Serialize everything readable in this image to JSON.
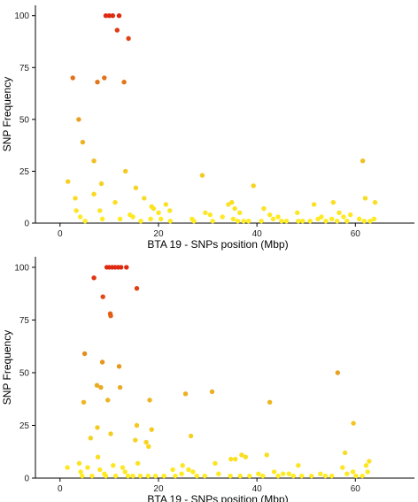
{
  "chart_data": [
    {
      "type": "scatter",
      "xlabel": "BTA 19 - SNPs position (Mbp)",
      "ylabel": "SNP Frequency",
      "xlim": [
        -5,
        72
      ],
      "ylim": [
        0,
        105
      ],
      "xticks": [
        0,
        20,
        40,
        60
      ],
      "yticks": [
        0,
        25,
        50,
        75,
        100
      ],
      "color_scale": "frequency: yellow (low) to red (high)",
      "colors": [
        "#ffee22",
        "#e8a020",
        "#dd2a10"
      ],
      "points": [
        {
          "x": 9.3,
          "y": 100
        },
        {
          "x": 10.0,
          "y": 100
        },
        {
          "x": 10.7,
          "y": 100
        },
        {
          "x": 12.0,
          "y": 100
        },
        {
          "x": 11.6,
          "y": 93
        },
        {
          "x": 13.9,
          "y": 89
        },
        {
          "x": 2.6,
          "y": 70
        },
        {
          "x": 9.0,
          "y": 70
        },
        {
          "x": 7.6,
          "y": 68
        },
        {
          "x": 13.0,
          "y": 68
        },
        {
          "x": 3.8,
          "y": 50
        },
        {
          "x": 4.6,
          "y": 39
        },
        {
          "x": 6.9,
          "y": 30
        },
        {
          "x": 61.5,
          "y": 30
        },
        {
          "x": 13.3,
          "y": 25
        },
        {
          "x": 28.9,
          "y": 23
        },
        {
          "x": 1.6,
          "y": 20
        },
        {
          "x": 8.4,
          "y": 19
        },
        {
          "x": 39.3,
          "y": 18
        },
        {
          "x": 15.4,
          "y": 17
        },
        {
          "x": 6.9,
          "y": 14
        },
        {
          "x": 17.1,
          "y": 12
        },
        {
          "x": 3.1,
          "y": 12
        },
        {
          "x": 62.0,
          "y": 12
        },
        {
          "x": 11.2,
          "y": 10
        },
        {
          "x": 64.0,
          "y": 10
        },
        {
          "x": 55.5,
          "y": 10
        },
        {
          "x": 34.9,
          "y": 10
        },
        {
          "x": 21.5,
          "y": 9
        },
        {
          "x": 34.2,
          "y": 9
        },
        {
          "x": 51.6,
          "y": 9
        },
        {
          "x": 18.6,
          "y": 8
        },
        {
          "x": 19.0,
          "y": 7
        },
        {
          "x": 35.5,
          "y": 7
        },
        {
          "x": 41.4,
          "y": 7
        },
        {
          "x": 3.3,
          "y": 6
        },
        {
          "x": 8.1,
          "y": 6
        },
        {
          "x": 22.3,
          "y": 6
        },
        {
          "x": 20.0,
          "y": 5
        },
        {
          "x": 29.5,
          "y": 5
        },
        {
          "x": 36.5,
          "y": 5
        },
        {
          "x": 48.2,
          "y": 5
        },
        {
          "x": 56.7,
          "y": 5
        },
        {
          "x": 4.1,
          "y": 3
        },
        {
          "x": 14.2,
          "y": 4
        },
        {
          "x": 30.5,
          "y": 4
        },
        {
          "x": 42.6,
          "y": 4
        },
        {
          "x": 59.0,
          "y": 4
        },
        {
          "x": 14.8,
          "y": 3
        },
        {
          "x": 33.0,
          "y": 3
        },
        {
          "x": 44.3,
          "y": 3
        },
        {
          "x": 53.1,
          "y": 3
        },
        {
          "x": 57.6,
          "y": 3
        },
        {
          "x": 5.1,
          "y": 1
        },
        {
          "x": 8.6,
          "y": 2
        },
        {
          "x": 12.2,
          "y": 2
        },
        {
          "x": 16.4,
          "y": 1
        },
        {
          "x": 18.4,
          "y": 2
        },
        {
          "x": 20.5,
          "y": 2
        },
        {
          "x": 22.4,
          "y": 1
        },
        {
          "x": 26.8,
          "y": 2
        },
        {
          "x": 27.2,
          "y": 1
        },
        {
          "x": 31.0,
          "y": 1
        },
        {
          "x": 35.2,
          "y": 2
        },
        {
          "x": 36.1,
          "y": 1
        },
        {
          "x": 37.3,
          "y": 1
        },
        {
          "x": 38.3,
          "y": 1
        },
        {
          "x": 40.9,
          "y": 1
        },
        {
          "x": 43.3,
          "y": 2
        },
        {
          "x": 45.0,
          "y": 1
        },
        {
          "x": 46.0,
          "y": 1
        },
        {
          "x": 48.4,
          "y": 1
        },
        {
          "x": 49.3,
          "y": 1
        },
        {
          "x": 50.8,
          "y": 1
        },
        {
          "x": 52.4,
          "y": 2
        },
        {
          "x": 54.0,
          "y": 1
        },
        {
          "x": 55.2,
          "y": 2
        },
        {
          "x": 56.3,
          "y": 1
        },
        {
          "x": 58.3,
          "y": 1
        },
        {
          "x": 60.8,
          "y": 2
        },
        {
          "x": 61.8,
          "y": 1
        },
        {
          "x": 63.0,
          "y": 1
        },
        {
          "x": 63.8,
          "y": 2
        }
      ]
    },
    {
      "type": "scatter",
      "xlabel": "BTA 19 - SNPs position (Mbp)",
      "ylabel": "SNP Frequency",
      "xlim": [
        -5,
        72
      ],
      "ylim": [
        0,
        105
      ],
      "xticks": [
        0,
        20,
        40,
        60
      ],
      "yticks": [
        0,
        25,
        50,
        75,
        100
      ],
      "color_scale": "frequency: yellow (low) to red (high)",
      "colors": [
        "#ffee22",
        "#e8a020",
        "#dd2a10"
      ],
      "points": [
        {
          "x": 9.5,
          "y": 100
        },
        {
          "x": 10.0,
          "y": 100
        },
        {
          "x": 10.6,
          "y": 100
        },
        {
          "x": 11.2,
          "y": 100
        },
        {
          "x": 11.8,
          "y": 100
        },
        {
          "x": 12.4,
          "y": 100
        },
        {
          "x": 13.5,
          "y": 100
        },
        {
          "x": 6.9,
          "y": 95
        },
        {
          "x": 15.6,
          "y": 90
        },
        {
          "x": 8.7,
          "y": 86
        },
        {
          "x": 10.2,
          "y": 78
        },
        {
          "x": 10.3,
          "y": 77
        },
        {
          "x": 5.0,
          "y": 59
        },
        {
          "x": 8.6,
          "y": 55
        },
        {
          "x": 12.0,
          "y": 53
        },
        {
          "x": 56.4,
          "y": 50
        },
        {
          "x": 7.5,
          "y": 44
        },
        {
          "x": 8.3,
          "y": 43
        },
        {
          "x": 12.2,
          "y": 43
        },
        {
          "x": 30.9,
          "y": 41
        },
        {
          "x": 25.5,
          "y": 40
        },
        {
          "x": 18.2,
          "y": 37
        },
        {
          "x": 4.8,
          "y": 36
        },
        {
          "x": 9.7,
          "y": 37
        },
        {
          "x": 42.6,
          "y": 36
        },
        {
          "x": 59.6,
          "y": 26
        },
        {
          "x": 15.6,
          "y": 25
        },
        {
          "x": 7.6,
          "y": 24
        },
        {
          "x": 18.6,
          "y": 23
        },
        {
          "x": 10.3,
          "y": 21
        },
        {
          "x": 26.6,
          "y": 20
        },
        {
          "x": 6.2,
          "y": 19
        },
        {
          "x": 15.3,
          "y": 18
        },
        {
          "x": 17.5,
          "y": 17
        },
        {
          "x": 18.0,
          "y": 15
        },
        {
          "x": 57.9,
          "y": 12
        },
        {
          "x": 42.0,
          "y": 11
        },
        {
          "x": 36.9,
          "y": 11
        },
        {
          "x": 37.7,
          "y": 10
        },
        {
          "x": 7.7,
          "y": 10
        },
        {
          "x": 34.7,
          "y": 9
        },
        {
          "x": 35.6,
          "y": 9
        },
        {
          "x": 62.8,
          "y": 8
        },
        {
          "x": 3.9,
          "y": 7
        },
        {
          "x": 15.8,
          "y": 7
        },
        {
          "x": 31.5,
          "y": 7
        },
        {
          "x": 62.2,
          "y": 6
        },
        {
          "x": 1.5,
          "y": 5
        },
        {
          "x": 10.8,
          "y": 6
        },
        {
          "x": 24.9,
          "y": 6
        },
        {
          "x": 48.4,
          "y": 6
        },
        {
          "x": 5.6,
          "y": 5
        },
        {
          "x": 12.7,
          "y": 5
        },
        {
          "x": 22.9,
          "y": 4
        },
        {
          "x": 26.1,
          "y": 4
        },
        {
          "x": 8.1,
          "y": 4
        },
        {
          "x": 57.4,
          "y": 5
        },
        {
          "x": 4.2,
          "y": 3
        },
        {
          "x": 13.2,
          "y": 3
        },
        {
          "x": 27.0,
          "y": 3
        },
        {
          "x": 46.5,
          "y": 2
        },
        {
          "x": 43.5,
          "y": 3
        },
        {
          "x": 59.5,
          "y": 3
        },
        {
          "x": 4.5,
          "y": 1
        },
        {
          "x": 6.5,
          "y": 1
        },
        {
          "x": 9.0,
          "y": 2
        },
        {
          "x": 9.3,
          "y": 1
        },
        {
          "x": 11.3,
          "y": 1
        },
        {
          "x": 13.8,
          "y": 1
        },
        {
          "x": 14.8,
          "y": 1
        },
        {
          "x": 16.3,
          "y": 1
        },
        {
          "x": 17.9,
          "y": 1
        },
        {
          "x": 19.4,
          "y": 1
        },
        {
          "x": 21.1,
          "y": 1
        },
        {
          "x": 23.4,
          "y": 1
        },
        {
          "x": 24.7,
          "y": 2
        },
        {
          "x": 27.8,
          "y": 1
        },
        {
          "x": 29.4,
          "y": 1
        },
        {
          "x": 32.2,
          "y": 2
        },
        {
          "x": 34.6,
          "y": 1
        },
        {
          "x": 36.6,
          "y": 1
        },
        {
          "x": 38.5,
          "y": 1
        },
        {
          "x": 40.3,
          "y": 2
        },
        {
          "x": 41.2,
          "y": 1
        },
        {
          "x": 44.3,
          "y": 1
        },
        {
          "x": 45.3,
          "y": 2
        },
        {
          "x": 47.4,
          "y": 1
        },
        {
          "x": 49.1,
          "y": 1
        },
        {
          "x": 51.1,
          "y": 1
        },
        {
          "x": 52.9,
          "y": 2
        },
        {
          "x": 53.9,
          "y": 1
        },
        {
          "x": 55.2,
          "y": 1
        },
        {
          "x": 58.3,
          "y": 2
        },
        {
          "x": 60.1,
          "y": 1
        },
        {
          "x": 61.4,
          "y": 1
        },
        {
          "x": 62.5,
          "y": 3
        }
      ]
    }
  ]
}
